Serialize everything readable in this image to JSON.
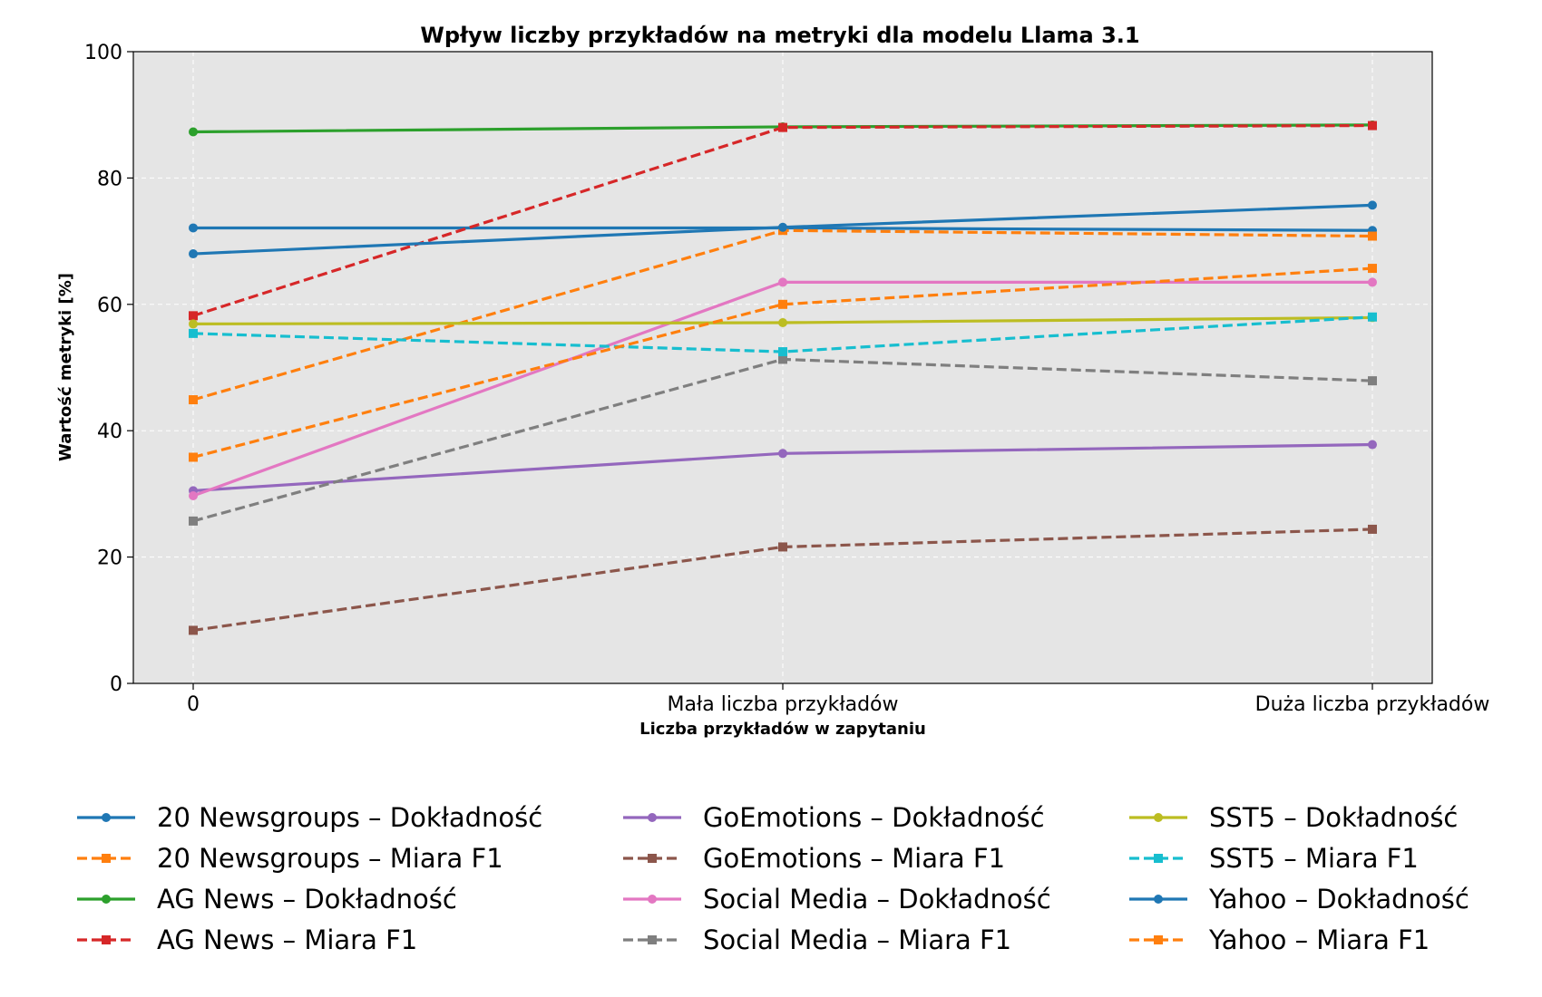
{
  "chart_data": {
    "type": "line",
    "title": "Wpływ liczby przykładów na metryki dla modelu Llama 3.1",
    "xlabel": "Liczba przykładów w zapytaniu",
    "ylabel": "Wartość metryki [%]",
    "categories": [
      "0",
      "Mała liczba przykładów",
      "Duża liczba przykładów"
    ],
    "ylim": [
      0,
      100
    ],
    "yticks": [
      0,
      20,
      40,
      60,
      80,
      100
    ],
    "grid": true,
    "legend_position": "bottom",
    "series": [
      {
        "name": "20 Newsgroups – Dokładność",
        "values": [
          72.1,
          72.1,
          71.7
        ],
        "color": "#1f77b4",
        "dash": "solid",
        "marker": "circle"
      },
      {
        "name": "20 Newsgroups – Miara F1",
        "values": [
          44.9,
          71.7,
          70.8
        ],
        "color": "#ff7f0e",
        "dash": "dashed",
        "marker": "square"
      },
      {
        "name": "AG News – Dokładność",
        "values": [
          87.3,
          88.1,
          88.4
        ],
        "color": "#2ca02c",
        "dash": "solid",
        "marker": "circle"
      },
      {
        "name": "AG News – Miara F1",
        "values": [
          58.2,
          88.0,
          88.3
        ],
        "color": "#d62728",
        "dash": "dashed",
        "marker": "square"
      },
      {
        "name": "GoEmotions – Dokładność",
        "values": [
          30.5,
          36.4,
          37.8
        ],
        "color": "#9467bd",
        "dash": "solid",
        "marker": "circle"
      },
      {
        "name": "GoEmotions – Miara F1",
        "values": [
          8.4,
          21.6,
          24.4
        ],
        "color": "#8c564b",
        "dash": "dashed",
        "marker": "square"
      },
      {
        "name": "Social Media – Dokładność",
        "values": [
          29.7,
          63.5,
          63.5
        ],
        "color": "#e377c2",
        "dash": "solid",
        "marker": "circle"
      },
      {
        "name": "Social Media – Miara F1",
        "values": [
          25.7,
          51.3,
          47.9
        ],
        "color": "#7f7f7f",
        "dash": "dashed",
        "marker": "square"
      },
      {
        "name": "SST5 – Dokładność",
        "values": [
          56.9,
          57.1,
          57.9
        ],
        "color": "#bcbd22",
        "dash": "solid",
        "marker": "circle"
      },
      {
        "name": "SST5 – Miara F1",
        "values": [
          55.4,
          52.5,
          58.0
        ],
        "color": "#17becf",
        "dash": "dashed",
        "marker": "square"
      },
      {
        "name": "Yahoo – Dokładność",
        "values": [
          68.0,
          72.2,
          75.7
        ],
        "color": "#1f77b4",
        "dash": "solid",
        "marker": "circle"
      },
      {
        "name": "Yahoo – Miara F1",
        "values": [
          35.8,
          60.0,
          65.7
        ],
        "color": "#ff7f0e",
        "dash": "dashed",
        "marker": "square"
      }
    ]
  }
}
